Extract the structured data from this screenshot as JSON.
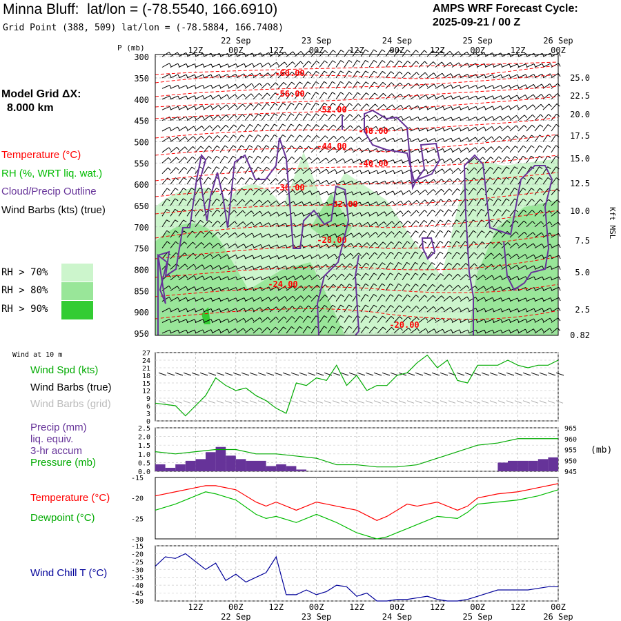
{
  "header": {
    "title": "Minna Bluff:  lat/lon = (-78.5540, 166.6910)",
    "subtitle": "Grid Point (388, 509) lat/lon = (-78.5884, 166.7408)",
    "cycle_line1": "AMPS WRF Forecast Cycle:",
    "cycle_line2": "2025-09-21 / 00  Z"
  },
  "left_panel": {
    "grid_line1": "Model Grid ΔX:",
    "grid_line2": "8.000 km",
    "legend_temperature": "Temperature (°C)",
    "legend_rh": "RH (%, WRT liq. wat.)",
    "legend_cloud": "Cloud/Precip Outline",
    "legend_wind": "Wind Barbs (kts) (true)",
    "rh70": "RH > 70%",
    "rh80": "RH > 80%",
    "rh90": "RH > 90%",
    "wind10m": "Wind at 10 m",
    "wind_spd": "Wind Spd (kts)",
    "wind_barbs_true": "Wind Barbs (true)",
    "wind_barbs_grid": "Wind Barbs (grid)",
    "precip1": "Precip (mm)",
    "precip2": "liq. equiv.",
    "precip3": "3-hr accum",
    "pressure": "Pressure (mb)",
    "temperature": "Temperature (°C)",
    "dewpoint": "Dewpoint (°C)",
    "windchill": "Wind Chill T (°C)"
  },
  "axes": {
    "p_unit": "P (mb)",
    "kft": "Kft MSL",
    "mb": "(mb)",
    "time_ticks": [
      "12Z",
      "00Z",
      "12Z",
      "00Z",
      "12Z",
      "00Z",
      "12Z",
      "00Z",
      "12Z",
      "00Z"
    ],
    "date_labels": [
      "22 Sep",
      "23 Sep",
      "24 Sep",
      "25 Sep",
      "26 Sep"
    ],
    "p_levels": [
      "300",
      "350",
      "400",
      "450",
      "500",
      "550",
      "600",
      "650",
      "700",
      "750",
      "800",
      "850",
      "900",
      "950"
    ],
    "kft_labels": [
      "25.0",
      "22.5",
      "20.0",
      "17.5",
      "15.0",
      "12.5",
      "10.0",
      "7.5",
      "5.0",
      "2.5",
      "0.82"
    ]
  },
  "colors": {
    "temperature": "#ff0000",
    "rh": "#00cc00",
    "cloud": "#663399",
    "wind_chill": "#000099",
    "rh70": "#ccf5cc",
    "rh80": "#99e699",
    "rh90": "#33cc33"
  },
  "chart_data": [
    {
      "type": "area",
      "title": "",
      "ylabel": "P (mb)",
      "ylim": [
        300,
        950
      ],
      "contour_labels": [
        "-60.00",
        "-56.00",
        "-52.00",
        "-48.00",
        "-44.00",
        "-40.00",
        "-36.00",
        "-32.00",
        "-28.00",
        "-24.00",
        "-20.00"
      ]
    },
    {
      "type": "line",
      "ylabel": "Wind Spd (kts)",
      "ylim": [
        0,
        27
      ],
      "yticks": [
        "27",
        "24",
        "21",
        "18",
        "15",
        "12",
        "9",
        "6",
        "3",
        "0"
      ],
      "x_hours": [
        0,
        6,
        9,
        12,
        15,
        18,
        21,
        24,
        27,
        30,
        33,
        36,
        39,
        42,
        45,
        48,
        51,
        54,
        57,
        60,
        63,
        66,
        69,
        72,
        75,
        78,
        81,
        84,
        87,
        90,
        93,
        96,
        99,
        102,
        105,
        108,
        111,
        114,
        117,
        120
      ],
      "series": [
        {
          "values": [
            7,
            6,
            2,
            6,
            10,
            17,
            14,
            12,
            13,
            10,
            8,
            5,
            3,
            15,
            14,
            17,
            16,
            22,
            14,
            18,
            12,
            14,
            14,
            18,
            19,
            23,
            26,
            21,
            24,
            16,
            15,
            22,
            22,
            22,
            24,
            22,
            21,
            22,
            22,
            24
          ]
        }
      ]
    },
    {
      "type": "bar",
      "ylabel": "Precip (mm)",
      "ylim": [
        0,
        2.5
      ],
      "yticks": [
        "2.5",
        "2.0",
        "1.5",
        "1.0",
        "0.5",
        "0.0"
      ],
      "y2ticks": [
        "965",
        "960",
        "955",
        "950",
        "945"
      ],
      "precip": [
        0.4,
        0.2,
        0.4,
        0.6,
        0.7,
        1.1,
        1.4,
        0.9,
        0.7,
        0.6,
        0.6,
        0.3,
        0.4,
        0.3,
        0.1,
        0,
        0,
        0,
        0,
        0,
        0,
        0,
        0,
        0,
        0,
        0,
        0,
        0,
        0,
        0,
        0,
        0,
        0,
        0,
        0.5,
        0.6,
        0.6,
        0.6,
        0.7,
        0.8
      ],
      "pressure_x_hours": [
        0,
        6,
        12,
        18,
        24,
        30,
        36,
        42,
        48,
        54,
        60,
        66,
        72,
        78,
        84,
        90,
        96,
        102,
        108,
        114,
        120
      ],
      "pressure": [
        954,
        953,
        954,
        955,
        955,
        953,
        953,
        952,
        951,
        948,
        948,
        947,
        947,
        948,
        951,
        954,
        957,
        958,
        960,
        960,
        960
      ]
    },
    {
      "type": "line",
      "ylim": [
        -30,
        -15
      ],
      "yticks": [
        "-15",
        "-20",
        "-25",
        "-30"
      ],
      "x_hours": [
        0,
        6,
        12,
        15,
        18,
        24,
        30,
        33,
        36,
        42,
        48,
        51,
        54,
        60,
        66,
        69,
        72,
        75,
        78,
        84,
        90,
        93,
        96,
        102,
        108,
        114,
        120
      ],
      "series": [
        {
          "name": "Temperature (°C)",
          "values": [
            -19.5,
            -18.5,
            -17.5,
            -17,
            -17,
            -18,
            -21,
            -22,
            -21,
            -23,
            -21,
            -21.5,
            -22,
            -23,
            -25.5,
            -24.5,
            -23,
            -21.5,
            -22,
            -21,
            -23,
            -22,
            -20,
            -19,
            -18.5,
            -17.5,
            -16.5
          ]
        },
        {
          "name": "Dewpoint (°C)",
          "values": [
            -23,
            -21.5,
            -19.5,
            -18.5,
            -19,
            -20.5,
            -24,
            -25,
            -24.5,
            -26,
            -24,
            -25,
            -26,
            -28.5,
            -30,
            -29.5,
            -28.5,
            -27.5,
            -26.5,
            -24.5,
            -25,
            -23.5,
            -21.5,
            -21,
            -20.5,
            -19.5,
            -18
          ]
        }
      ]
    },
    {
      "type": "line",
      "ylim": [
        -50,
        -15
      ],
      "yticks": [
        "-15",
        "-20",
        "-25",
        "-30",
        "-35",
        "-40",
        "-45",
        "-50"
      ],
      "x_hours": [
        0,
        3,
        6,
        9,
        12,
        15,
        18,
        21,
        24,
        27,
        30,
        33,
        36,
        39,
        42,
        45,
        48,
        51,
        54,
        57,
        60,
        63,
        66,
        69,
        72,
        75,
        78,
        81,
        84,
        87,
        90,
        93,
        96,
        99,
        102,
        105,
        108,
        111,
        114,
        117,
        120
      ],
      "series": [
        {
          "name": "Wind Chill T (°C)",
          "values": [
            -28,
            -22,
            -23,
            -20,
            -25,
            -30,
            -26,
            -37,
            -33,
            -38,
            -35,
            -32,
            -22,
            -46,
            -46,
            -43,
            -46,
            -44,
            -40,
            -41,
            -47,
            -45,
            -50,
            -50,
            -49,
            -49,
            -48,
            -47,
            -49,
            -50,
            -50,
            -49,
            -47,
            -45,
            -43,
            -43,
            -43,
            -43,
            -42,
            -41,
            -41
          ]
        }
      ]
    }
  ]
}
